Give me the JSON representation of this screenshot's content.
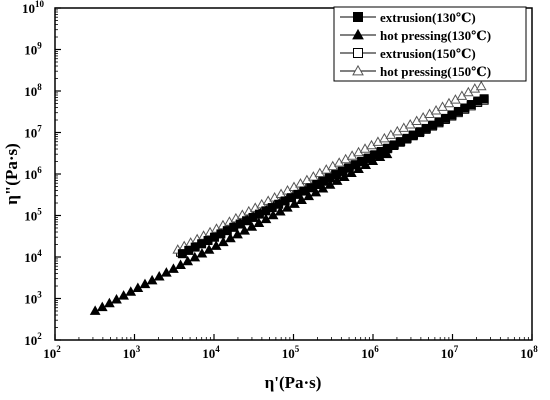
{
  "chart_data": {
    "type": "scatter",
    "xlabel": "η'(Pa·s)",
    "ylabel": "η\"(Pa·s)",
    "x_scale": "log",
    "y_scale": "log",
    "xlim": [
      100,
      100000000
    ],
    "ylim": [
      100,
      10000000000
    ],
    "x_ticks": [
      100,
      1000,
      10000,
      100000,
      1000000,
      10000000,
      100000000
    ],
    "y_ticks": [
      100,
      1000,
      10000,
      100000,
      1000000,
      10000000,
      100000000,
      1000000000,
      10000000000
    ],
    "x_tick_labels": [
      {
        "base": "10",
        "exp": "2"
      },
      {
        "base": "10",
        "exp": "3"
      },
      {
        "base": "10",
        "exp": "4"
      },
      {
        "base": "10",
        "exp": "5"
      },
      {
        "base": "10",
        "exp": "6"
      },
      {
        "base": "10",
        "exp": "7"
      },
      {
        "base": "10",
        "exp": "8"
      }
    ],
    "y_tick_labels": [
      {
        "base": "10",
        "exp": "2"
      },
      {
        "base": "10",
        "exp": "3"
      },
      {
        "base": "10",
        "exp": "4"
      },
      {
        "base": "10",
        "exp": "5"
      },
      {
        "base": "10",
        "exp": "6"
      },
      {
        "base": "10",
        "exp": "7"
      },
      {
        "base": "10",
        "exp": "8"
      },
      {
        "base": "10",
        "exp": "9"
      },
      {
        "base": "10",
        "exp": "10"
      }
    ],
    "grid": false,
    "legend_position": "top-right",
    "series": [
      {
        "name": "extrusion(130℃)",
        "marker": "square",
        "filled": true,
        "x_start": 4000,
        "x_end": 25000000,
        "count": 48,
        "x": [
          4000,
          25000000
        ],
        "y": [
          12000,
          65000000
        ]
      },
      {
        "name": "hot pressing(130℃)",
        "marker": "triangle",
        "filled": true,
        "x_start": 320,
        "x_end": 1500000,
        "count": 42,
        "x": [
          320,
          1500000
        ],
        "y": [
          500,
          3000000
        ]
      },
      {
        "name": "extrusion(150℃)",
        "marker": "square",
        "filled": false,
        "x_start": 3800,
        "x_end": 25000000,
        "count": 48,
        "x": [
          3800,
          25000000
        ],
        "y": [
          13000,
          60000000
        ]
      },
      {
        "name": "hot pressing(150℃)",
        "marker": "triangle",
        "filled": false,
        "x_start": 3500,
        "x_end": 23000000,
        "count": 48,
        "x": [
          3500,
          23000000
        ],
        "y": [
          15000,
          130000000
        ]
      }
    ]
  }
}
